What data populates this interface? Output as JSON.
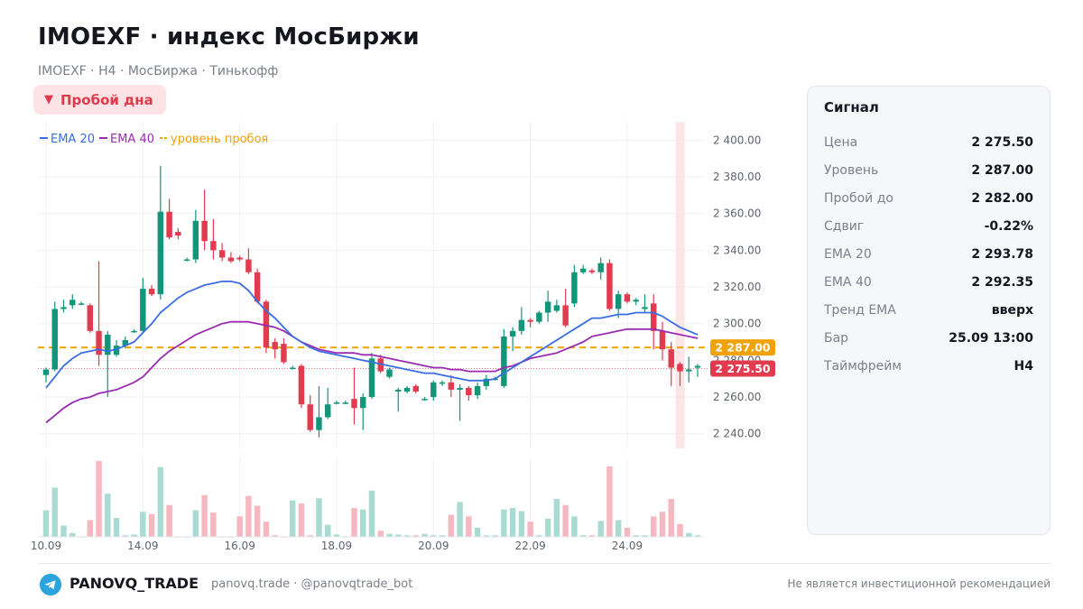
{
  "header": {
    "title": "IMOEXF · индекс МосБиржи",
    "subtitle": "IMOEXF · H4 · МосБиржа · Тинькофф",
    "badge_icon": "down-triangle-icon",
    "badge_label": "Пробой дна"
  },
  "legend": [
    {
      "label": "EMA 20",
      "color": "#3a6ee0"
    },
    {
      "label": "EMA 40",
      "color": "#9a2bb0"
    },
    {
      "label": "уровень пробоя",
      "color": "#f0a20a"
    }
  ],
  "price_tags": {
    "level": "2 287.00",
    "price": "2 275.50"
  },
  "signal_panel": {
    "title": "Сигнал",
    "rows": [
      {
        "key": "Цена",
        "value": "2 275.50"
      },
      {
        "key": "Уровень",
        "value": "2 287.00"
      },
      {
        "key": "Пробой до",
        "value": "2 282.00"
      },
      {
        "key": "Сдвиг",
        "value": "-0.22%"
      },
      {
        "key": "EMA 20",
        "value": "2 293.78"
      },
      {
        "key": "EMA 40",
        "value": "2 292.35"
      },
      {
        "key": "Тренд EMA",
        "value": "вверх"
      },
      {
        "key": "Бар",
        "value": "25.09 13:00"
      },
      {
        "key": "Таймфрейм",
        "value": "H4"
      }
    ]
  },
  "footer": {
    "brand": "PANOVQ_TRADE",
    "links": "panovq.trade · @panovqtrade_bot",
    "disclaimer": "Не является инвестиционной рекомендацией",
    "icon": "telegram-icon"
  },
  "colors": {
    "up": "#13957a",
    "down": "#e23a4e",
    "ema20": "#3a6ee0",
    "ema40": "#9a2bb0",
    "level": "#f0a20a",
    "vol_up": "#a9dbd2",
    "vol_down": "#f5b8c0"
  },
  "chart_data": {
    "type": "candlestick",
    "ylim": [
      2232,
      2410
    ],
    "y_ticks": [
      "2 240.00",
      "2 260.00",
      "2 280.00",
      "2 300.00",
      "2 320.00",
      "2 340.00",
      "2 360.00",
      "2 380.00",
      "2 400.00"
    ],
    "y_tick_values": [
      2240,
      2260,
      2280,
      2300,
      2320,
      2340,
      2360,
      2380,
      2400
    ],
    "x_labels": [
      "10.09",
      "14.09",
      "16.09",
      "18.09",
      "20.09",
      "22.09",
      "24.09"
    ],
    "x_label_bar_index": [
      0,
      11,
      22,
      33,
      44,
      55,
      66
    ],
    "level": 2287,
    "last_price": 2275.5,
    "signal_bar_index": 72,
    "candles": [
      [
        2272,
        2275,
        2268,
        2276
      ],
      [
        2275,
        2308,
        2274,
        2312
      ],
      [
        2308,
        2309,
        2306,
        2313
      ],
      [
        2310,
        2313,
        2308,
        2316
      ],
      [
        2311,
        2311,
        2310,
        2312
      ],
      [
        2310,
        2296,
        2295,
        2311
      ],
      [
        2296,
        2283,
        2277,
        2334
      ],
      [
        2283,
        2294,
        2260,
        2296
      ],
      [
        2283,
        2288,
        2282,
        2291
      ],
      [
        2288,
        2291,
        2287,
        2293
      ],
      [
        2296,
        2296,
        2295,
        2297
      ],
      [
        2296,
        2319,
        2295,
        2325
      ],
      [
        2319,
        2316,
        2315,
        2321
      ],
      [
        2316,
        2361,
        2313,
        2386
      ],
      [
        2361,
        2347,
        2346,
        2368
      ],
      [
        2350,
        2348,
        2346,
        2352
      ],
      [
        2335,
        2335,
        2334,
        2336
      ],
      [
        2335,
        2356,
        2333,
        2362
      ],
      [
        2356,
        2345,
        2340,
        2373
      ],
      [
        2345,
        2340,
        2335,
        2357
      ],
      [
        2340,
        2336,
        2334,
        2344
      ],
      [
        2336,
        2334,
        2333,
        2339
      ],
      [
        2336,
        2335,
        2334,
        2337
      ],
      [
        2335,
        2328,
        2327,
        2341
      ],
      [
        2328,
        2312,
        2311,
        2330
      ],
      [
        2312,
        2287,
        2284,
        2313
      ],
      [
        2290,
        2286,
        2281,
        2292
      ],
      [
        2289,
        2279,
        2278,
        2292
      ],
      [
        2276,
        2276,
        2275,
        2277
      ],
      [
        2277,
        2256,
        2254,
        2278
      ],
      [
        2256,
        2242,
        2241,
        2261
      ],
      [
        2242,
        2249,
        2238,
        2266
      ],
      [
        2249,
        2256,
        2248,
        2265
      ],
      [
        2257,
        2257,
        2256,
        2258
      ],
      [
        2257,
        2257,
        2256,
        2258
      ],
      [
        2259,
        2254,
        2245,
        2276
      ],
      [
        2254,
        2260,
        2242,
        2262
      ],
      [
        2260,
        2281,
        2259,
        2284
      ],
      [
        2281,
        2274,
        2273,
        2283
      ],
      [
        2271,
        2275,
        2270,
        2276
      ],
      [
        2263,
        2264,
        2252,
        2265
      ],
      [
        2263,
        2265,
        2262,
        2266
      ],
      [
        2266,
        2263,
        2262,
        2267
      ],
      [
        2259,
        2259,
        2258,
        2260
      ],
      [
        2260,
        2268,
        2258,
        2269
      ],
      [
        2268,
        2268,
        2266,
        2269
      ],
      [
        2268,
        2264,
        2260,
        2272
      ],
      [
        2264,
        2265,
        2247,
        2267
      ],
      [
        2265,
        2261,
        2258,
        2266
      ],
      [
        2261,
        2266,
        2259,
        2268
      ],
      [
        2266,
        2270,
        2264,
        2272
      ],
      [
        2270,
        2270,
        2269,
        2271
      ],
      [
        2266,
        2293,
        2265,
        2297
      ],
      [
        2293,
        2296,
        2285,
        2298
      ],
      [
        2296,
        2302,
        2294,
        2309
      ],
      [
        2302,
        2301,
        2298,
        2303
      ],
      [
        2301,
        2306,
        2300,
        2307
      ],
      [
        2306,
        2312,
        2301,
        2318
      ],
      [
        2307,
        2310,
        2306,
        2313
      ],
      [
        2310,
        2299,
        2298,
        2319
      ],
      [
        2311,
        2328,
        2309,
        2332
      ],
      [
        2328,
        2330,
        2327,
        2332
      ],
      [
        2329,
        2328,
        2327,
        2330
      ],
      [
        2328,
        2333,
        2324,
        2336
      ],
      [
        2333,
        2308,
        2307,
        2335
      ],
      [
        2308,
        2316,
        2303,
        2318
      ],
      [
        2316,
        2312,
        2311,
        2317
      ],
      [
        2312,
        2313,
        2310,
        2314
      ],
      [
        2308,
        2309,
        2306,
        2316
      ],
      [
        2311,
        2296,
        2286,
        2316
      ],
      [
        2296,
        2286,
        2280,
        2301
      ],
      [
        2286,
        2276,
        2266,
        2290
      ],
      [
        2278,
        2274,
        2266,
        2279
      ],
      [
        2274,
        2275,
        2268,
        2282
      ],
      [
        2276,
        2277,
        2271,
        2278
      ]
    ],
    "ema20": [
      2265,
      2271,
      2277,
      2281,
      2284,
      2285,
      2286,
      2285,
      2286,
      2288,
      2290,
      2295,
      2300,
      2306,
      2310,
      2314,
      2317,
      2319,
      2321,
      2322,
      2323,
      2323,
      2322,
      2318,
      2312,
      2307,
      2303,
      2298,
      2293,
      2290,
      2287,
      2285,
      2284,
      2283,
      2282,
      2281,
      2280,
      2279,
      2278,
      2277,
      2276,
      2275,
      2274,
      2273,
      2273,
      2272,
      2271,
      2270,
      2269,
      2269,
      2269,
      2270,
      2273,
      2276,
      2279,
      2282,
      2285,
      2288,
      2291,
      2294,
      2297,
      2300,
      2303,
      2303,
      2304,
      2305,
      2305,
      2306,
      2306,
      2306,
      2304,
      2301,
      2298,
      2296,
      2294
    ],
    "ema40": [
      2246,
      2250,
      2254,
      2257,
      2259,
      2260,
      2262,
      2263,
      2264,
      2266,
      2268,
      2271,
      2276,
      2281,
      2285,
      2288,
      2291,
      2294,
      2296,
      2298,
      2300,
      2301,
      2301,
      2301,
      2300,
      2299,
      2298,
      2296,
      2293,
      2290,
      2288,
      2286,
      2285,
      2284,
      2284,
      2284,
      2283,
      2283,
      2282,
      2281,
      2280,
      2279,
      2278,
      2277,
      2276,
      2276,
      2275,
      2275,
      2274,
      2274,
      2274,
      2274,
      2276,
      2277,
      2279,
      2281,
      2282,
      2283,
      2284,
      2286,
      2288,
      2290,
      2293,
      2294,
      2295,
      2296,
      2297,
      2297,
      2297,
      2297,
      2296,
      2295,
      2294,
      2293,
      2292
    ],
    "volume": [
      35,
      65,
      15,
      5,
      0,
      22,
      100,
      57,
      25,
      2,
      3,
      33,
      30,
      92,
      42,
      0,
      0,
      35,
      55,
      32,
      0,
      0,
      27,
      54,
      41,
      20,
      2,
      0,
      48,
      44,
      2,
      51,
      16,
      3,
      0,
      38,
      36,
      61,
      8,
      4,
      3,
      2,
      2,
      4,
      2,
      2,
      29,
      46,
      27,
      12,
      2,
      2,
      36,
      38,
      34,
      20,
      2,
      24,
      50,
      42,
      27,
      2,
      2,
      21,
      93,
      22,
      12,
      2,
      2,
      27,
      33,
      50,
      17,
      5,
      2
    ]
  }
}
